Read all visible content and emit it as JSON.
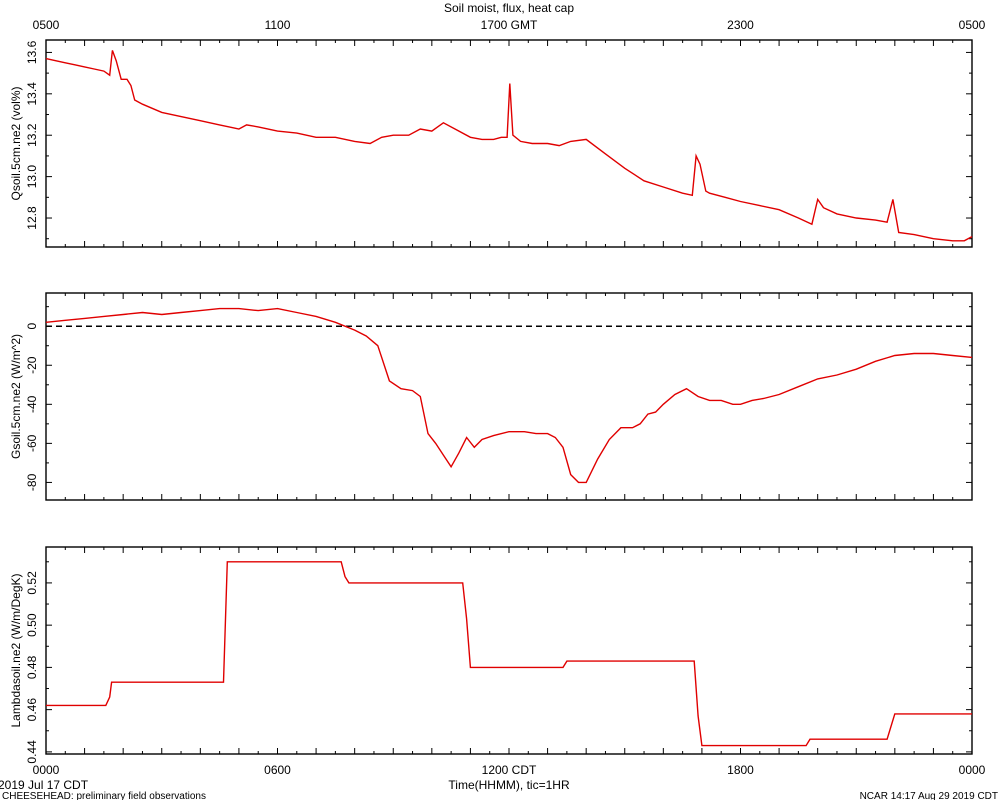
{
  "chart_data": [
    {
      "type": "line",
      "title": "Soil moist, flux, heat cap",
      "ylabel": "Qsoil.5cm.ne2 (vol%)",
      "xlim": [
        0,
        24
      ],
      "ylim": [
        12.66,
        13.66
      ],
      "yticks": [
        12.8,
        13.0,
        13.2,
        13.4,
        13.6
      ],
      "top_axis_ticks": [
        "0500",
        "1100",
        "1700 GMT",
        "2300",
        "0500"
      ],
      "series": [
        {
          "color": "#e00000",
          "x": [
            0,
            0.25,
            0.5,
            0.75,
            1.0,
            1.25,
            1.5,
            1.65,
            1.72,
            1.82,
            1.95,
            2.1,
            2.2,
            2.3,
            2.5,
            3,
            3.5,
            4,
            4.5,
            5,
            5.2,
            5.5,
            6,
            6.5,
            7,
            7.5,
            8,
            8.4,
            8.7,
            9,
            9.4,
            9.7,
            10,
            10.3,
            10.6,
            11,
            11.3,
            11.6,
            11.8,
            11.95,
            12.02,
            12.1,
            12.3,
            12.6,
            13,
            13.3,
            13.6,
            14,
            14.5,
            15,
            15.5,
            16,
            16.5,
            16.75,
            16.85,
            16.95,
            17.1,
            17.2,
            17.6,
            18,
            18.5,
            19,
            19.5,
            19.85,
            20,
            20.15,
            20.5,
            21,
            21.5,
            21.8,
            21.95,
            22.1,
            22.5,
            23,
            23.5,
            23.8,
            24
          ],
          "y": [
            13.57,
            13.56,
            13.55,
            13.54,
            13.53,
            13.52,
            13.51,
            13.49,
            13.61,
            13.56,
            13.47,
            13.47,
            13.44,
            13.37,
            13.35,
            13.31,
            13.29,
            13.27,
            13.25,
            13.23,
            13.25,
            13.24,
            13.22,
            13.21,
            13.19,
            13.19,
            13.17,
            13.16,
            13.19,
            13.2,
            13.2,
            13.23,
            13.22,
            13.26,
            13.23,
            13.19,
            13.18,
            13.18,
            13.19,
            13.19,
            13.45,
            13.2,
            13.17,
            13.16,
            13.16,
            13.15,
            13.17,
            13.18,
            13.11,
            13.04,
            12.98,
            12.95,
            12.92,
            12.91,
            13.1,
            13.06,
            12.93,
            12.92,
            12.9,
            12.88,
            12.86,
            12.84,
            12.8,
            12.77,
            12.89,
            12.85,
            12.82,
            12.8,
            12.79,
            12.78,
            12.89,
            12.73,
            12.72,
            12.7,
            12.69,
            12.69,
            12.71
          ]
        }
      ]
    },
    {
      "type": "line",
      "ylabel": "Gsoil.5cm.ne2 (W/m^2)",
      "xlim": [
        0,
        24
      ],
      "ylim": [
        -89,
        17
      ],
      "yticks": [
        0,
        -20,
        -40,
        -60,
        -80
      ],
      "reference_line": 0,
      "series": [
        {
          "color": "#e00000",
          "x": [
            0,
            0.5,
            1,
            1.5,
            2,
            2.5,
            3,
            3.5,
            4,
            4.5,
            5,
            5.5,
            6,
            6.5,
            7,
            7.5,
            8,
            8.3,
            8.6,
            8.9,
            9.2,
            9.5,
            9.7,
            9.9,
            10.1,
            10.3,
            10.5,
            10.7,
            10.9,
            11.1,
            11.3,
            11.6,
            12,
            12.4,
            12.7,
            13,
            13.2,
            13.4,
            13.6,
            13.8,
            14,
            14.3,
            14.6,
            14.9,
            15.2,
            15.4,
            15.6,
            15.8,
            16,
            16.3,
            16.6,
            16.9,
            17.2,
            17.5,
            17.8,
            18,
            18.3,
            18.6,
            19,
            19.5,
            20,
            20.5,
            21,
            21.5,
            22,
            22.5,
            23,
            23.5,
            24
          ],
          "y": [
            2,
            3,
            4,
            5,
            6,
            7,
            6,
            7,
            8,
            9,
            9,
            8,
            9,
            7,
            5,
            2,
            -2,
            -5,
            -10,
            -28,
            -32,
            -33,
            -36,
            -55,
            -60,
            -66,
            -72,
            -65,
            -57,
            -62,
            -58,
            -56,
            -54,
            -54,
            -55,
            -55,
            -57,
            -62,
            -76,
            -80,
            -80,
            -68,
            -58,
            -52,
            -52,
            -50,
            -45,
            -44,
            -40,
            -35,
            -32,
            -36,
            -38,
            -38,
            -40,
            -40,
            -38,
            -37,
            -35,
            -31,
            -27,
            -25,
            -22,
            -18,
            -15,
            -14,
            -14,
            -15,
            -16
          ]
        }
      ]
    },
    {
      "type": "line",
      "ylabel": "Lambdasoil.ne2 (W/m/DegK)",
      "xlabel": "Time(HHMM), tic=1HR",
      "xlim": [
        0,
        24
      ],
      "ylim": [
        0.439,
        0.537
      ],
      "yticks": [
        0.44,
        0.46,
        0.48,
        0.5,
        0.52
      ],
      "bottom_axis_ticks": [
        "0000",
        "0600",
        "1200 CDT",
        "1800",
        "0000"
      ],
      "series": [
        {
          "color": "#e00000",
          "x": [
            0,
            1.55,
            1.65,
            1.7,
            4.6,
            4.7,
            7.65,
            7.75,
            7.85,
            10.8,
            10.9,
            11.0,
            13.4,
            13.5,
            16.8,
            16.9,
            17.0,
            19.7,
            19.8,
            21.8,
            22.0,
            24
          ],
          "y": [
            0.462,
            0.462,
            0.466,
            0.473,
            0.473,
            0.53,
            0.53,
            0.523,
            0.52,
            0.52,
            0.503,
            0.48,
            0.48,
            0.483,
            0.483,
            0.457,
            0.443,
            0.443,
            0.446,
            0.446,
            0.458,
            0.458
          ]
        }
      ]
    }
  ],
  "footer": {
    "date_label": "2019 Jul 17 CDT",
    "project_note": "CHEESEHEAD: preliminary field observations",
    "credit": "NCAR 14:17 Aug 29 2019 CDT"
  }
}
